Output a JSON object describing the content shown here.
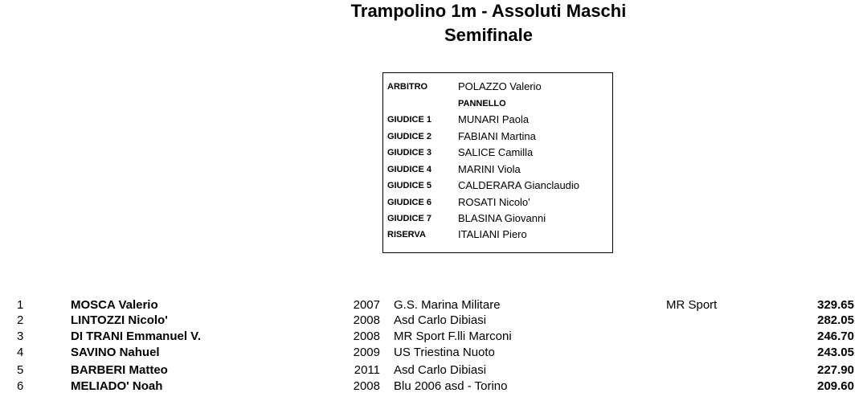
{
  "header": {
    "title": "Trampolino 1m - Assoluti Maschi",
    "subtitle": "Semifinale"
  },
  "jury": {
    "referee": {
      "label": "ARBITRO",
      "name": "POLAZZO Valerio"
    },
    "panel_label": "PANNELLO",
    "judges": [
      {
        "label": "GIUDICE 1",
        "name": "MUNARI Paola"
      },
      {
        "label": "GIUDICE 2",
        "name": "FABIANI Martina"
      },
      {
        "label": "GIUDICE 3",
        "name": "SALICE Camilla"
      },
      {
        "label": "GIUDICE 4",
        "name": "MARINI Viola"
      },
      {
        "label": "GIUDICE 5",
        "name": "CALDERARA Gianclaudio"
      },
      {
        "label": "GIUDICE 6",
        "name": "ROSATI Nicolo'"
      },
      {
        "label": "GIUDICE 7",
        "name": "BLASINA Giovanni"
      }
    ],
    "reserve": {
      "label": "RISERVA",
      "name": "ITALIANI Piero"
    }
  },
  "results": [
    {
      "rank": "1",
      "name": "MOSCA Valerio",
      "year": "2007",
      "club": "G.S. Marina Militare",
      "club2": "MR Sport",
      "score": "329.65"
    },
    {
      "rank": "2",
      "name": "LINTOZZI Nicolo'",
      "year": "2008",
      "club": "Asd Carlo Dibiasi",
      "club2": "",
      "score": "282.05"
    },
    {
      "rank": "3",
      "name": "DI TRANI Emmanuel V.",
      "year": "2008",
      "club": "MR Sport F.lli Marconi",
      "club2": "",
      "score": "246.70"
    },
    {
      "rank": "4",
      "name": "SAVINO Nahuel",
      "year": "2009",
      "club": "US Triestina Nuoto",
      "club2": "",
      "score": "243.05"
    },
    {
      "rank": "5",
      "name": "BARBERI Matteo",
      "year": "2011",
      "club": "Asd Carlo Dibiasi",
      "club2": "",
      "score": "227.90"
    },
    {
      "rank": "6",
      "name": "MELIADO' Noah",
      "year": "2008",
      "club": "Blu 2006 asd - Torino",
      "club2": "",
      "score": "209.60"
    }
  ]
}
